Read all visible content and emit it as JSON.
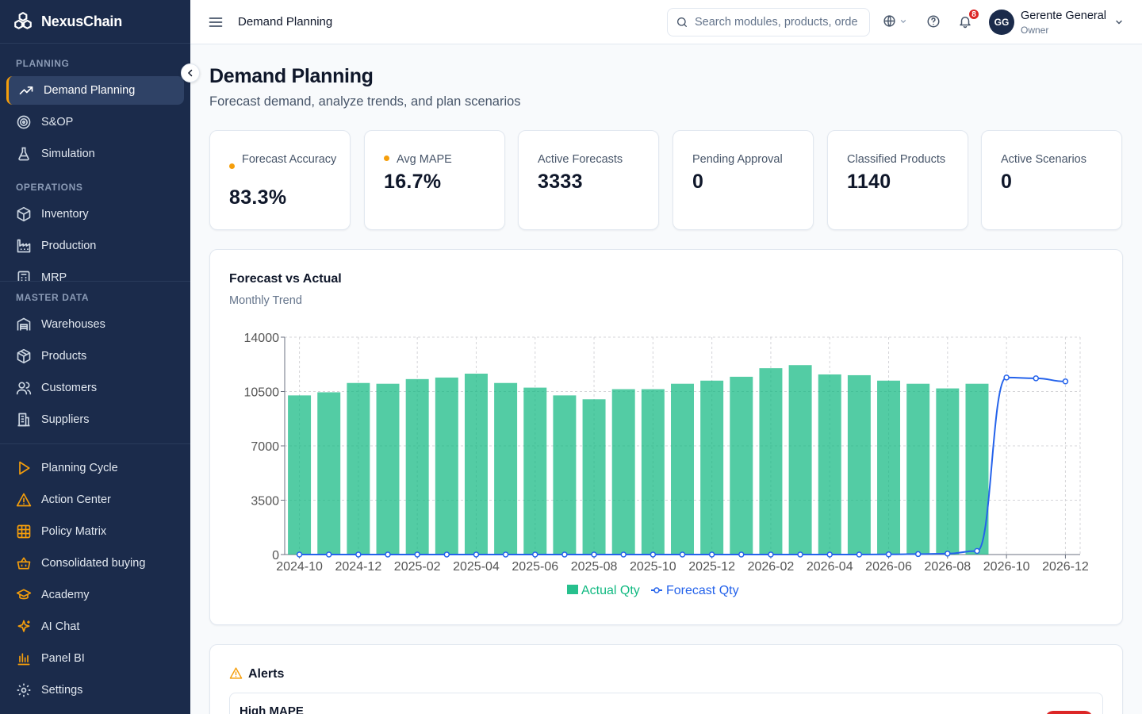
{
  "sidebar": {
    "brand": "NexusChain",
    "sections": {
      "planning": "PLANNING",
      "operations": "OPERATIONS",
      "master_data": "MASTER DATA"
    },
    "items": {
      "demand_planning": "Demand Planning",
      "sop": "S&OP",
      "simulation": "Simulation",
      "inventory": "Inventory",
      "production": "Production",
      "mrp": "MRP",
      "warehouses": "Warehouses",
      "products": "Products",
      "customers": "Customers",
      "suppliers": "Suppliers",
      "planning_cycle": "Planning Cycle",
      "action_center": "Action Center",
      "policy_matrix": "Policy Matrix",
      "consolidated_buying": "Consolidated buying",
      "academy": "Academy",
      "ai_chat": "AI Chat",
      "panel_bi": "Panel BI",
      "settings": "Settings"
    },
    "active_item": "demand_planning"
  },
  "header": {
    "title": "Demand Planning",
    "search_placeholder": "Search modules, products, orders...",
    "notification_count": "8",
    "user": {
      "initials": "GG",
      "name": "Gerente General",
      "role": "Owner"
    }
  },
  "page": {
    "title": "Demand Planning",
    "subtitle": "Forecast demand, analyze trends, and plan scenarios"
  },
  "kpis": [
    {
      "label": "Forecast Accuracy",
      "value": "83.3%"
    },
    {
      "label": "Avg MAPE",
      "value": "16.7%"
    },
    {
      "label": "Active Forecasts",
      "value": "3333"
    },
    {
      "label": "Pending Approval",
      "value": "0"
    },
    {
      "label": "Classified Products",
      "value": "1140"
    },
    {
      "label": "Active Scenarios",
      "value": "0"
    }
  ],
  "chart_card": {
    "title": "Forecast vs Actual",
    "subtitle": "Monthly Trend"
  },
  "chart_data": {
    "type": "bar",
    "x": [
      "2024-10",
      "2024-11",
      "2024-12",
      "2025-01",
      "2025-02",
      "2025-03",
      "2025-04",
      "2025-05",
      "2025-06",
      "2025-07",
      "2025-08",
      "2025-09",
      "2025-10",
      "2025-11",
      "2025-12",
      "2026-01",
      "2026-02",
      "2026-03",
      "2026-04",
      "2026-05",
      "2026-06",
      "2026-07",
      "2026-08",
      "2026-09",
      "2026-10",
      "2026-11",
      "2026-12"
    ],
    "tick_labels": [
      "2024-10",
      "2024-12",
      "2025-02",
      "2025-04",
      "2025-06",
      "2025-08",
      "2025-10",
      "2025-12",
      "2026-02",
      "2026-04",
      "2026-06",
      "2026-08",
      "2026-10",
      "2026-12"
    ],
    "series": [
      {
        "name": "Actual Qty",
        "type": "bar",
        "color": "#10b981",
        "values": [
          10250,
          10450,
          11050,
          11000,
          11300,
          11400,
          11650,
          11050,
          10750,
          10250,
          10000,
          10650,
          10650,
          11000,
          11200,
          11450,
          12000,
          12200,
          11600,
          11550,
          11200,
          11000,
          10700,
          11000,
          null,
          null,
          null
        ]
      },
      {
        "name": "Forecast Qty",
        "type": "line",
        "color": "#2563eb",
        "values": [
          0,
          0,
          0,
          0,
          0,
          0,
          0,
          0,
          0,
          0,
          0,
          0,
          0,
          0,
          0,
          0,
          0,
          0,
          0,
          0,
          10,
          30,
          60,
          230,
          11400,
          11350,
          11150
        ]
      }
    ],
    "ylim": [
      0,
      14000
    ],
    "y_ticks": [
      0,
      3500,
      7000,
      10500,
      14000
    ],
    "grid": true,
    "legend": "bottom-center"
  },
  "alerts": {
    "title": "Alerts",
    "items": [
      {
        "name": "High MAPE"
      }
    ]
  }
}
